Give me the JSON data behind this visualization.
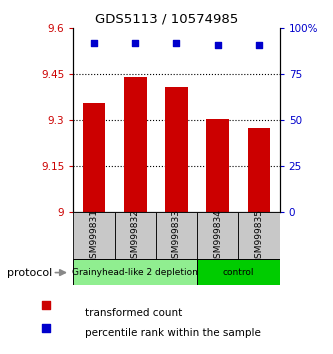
{
  "title": "GDS5113 / 10574985",
  "categories": [
    "GSM999831",
    "GSM999832",
    "GSM999833",
    "GSM999834",
    "GSM999835"
  ],
  "bar_values": [
    9.355,
    9.44,
    9.41,
    9.305,
    9.275
  ],
  "percentile_values": [
    92,
    92,
    92,
    91,
    91
  ],
  "bar_color": "#cc0000",
  "dot_color": "#0000cc",
  "ylim_left": [
    9.0,
    9.6
  ],
  "ylim_right": [
    0,
    100
  ],
  "yticks_left": [
    9.0,
    9.15,
    9.3,
    9.45,
    9.6
  ],
  "ytick_labels_left": [
    "9",
    "9.15",
    "9.3",
    "9.45",
    "9.6"
  ],
  "yticks_right": [
    0,
    25,
    50,
    75,
    100
  ],
  "ytick_labels_right": [
    "0",
    "25",
    "50",
    "75",
    "100%"
  ],
  "grid_yticks": [
    9.15,
    9.3,
    9.45
  ],
  "groups": [
    {
      "label": "Grainyhead-like 2 depletion",
      "start": 0,
      "end": 3,
      "color": "#90ee90"
    },
    {
      "label": "control",
      "start": 3,
      "end": 5,
      "color": "#00cc00"
    }
  ],
  "protocol_label": "protocol",
  "legend_bar_label": "transformed count",
  "legend_dot_label": "percentile rank within the sample",
  "background_color": "#ffffff",
  "plot_bg_color": "#ffffff",
  "sample_box_color": "#c8c8c8"
}
